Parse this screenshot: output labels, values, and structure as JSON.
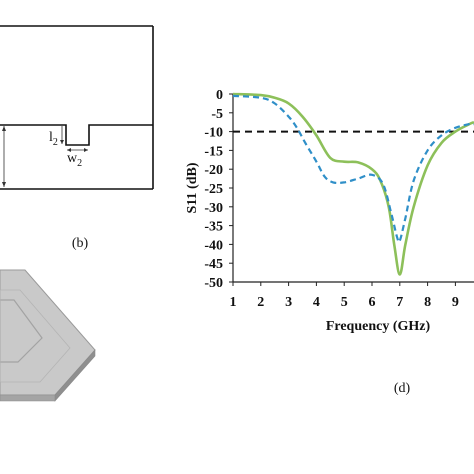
{
  "panel_b": {
    "caption": "(b)",
    "dim_l": "l",
    "dim_l_sub": "2",
    "dim_w": "w",
    "dim_w_sub": "2"
  },
  "panel_d": {
    "caption": "(d)"
  },
  "chart_data": {
    "type": "line",
    "title": "",
    "xlabel": "Frequency (GHz)",
    "ylabel": "S11 (dB)",
    "xlim": [
      1,
      10
    ],
    "ylim": [
      -50,
      0
    ],
    "xticks": [
      1,
      2,
      3,
      4,
      5,
      6,
      7,
      8,
      9
    ],
    "yticks": [
      0,
      -5,
      -10,
      -15,
      -20,
      -25,
      -30,
      -35,
      -40,
      -45,
      -50
    ],
    "grid": false,
    "legend": "none",
    "reference_line": {
      "y": -10,
      "style": "dashed",
      "color": "#111111"
    },
    "series": [
      {
        "style": "solid",
        "color": "#8dc05a",
        "x": [
          1.0,
          2.0,
          2.5,
          3.0,
          3.5,
          4.0,
          4.5,
          5.0,
          5.5,
          6.0,
          6.3,
          6.6,
          6.8,
          7.0,
          7.2,
          7.5,
          8.0,
          8.5,
          9.0,
          9.5,
          10.0
        ],
        "y": [
          0,
          -0.3,
          -1.0,
          -2.5,
          -6,
          -11,
          -17,
          -18,
          -18.2,
          -20,
          -23,
          -30,
          -40,
          -48,
          -40,
          -30,
          -19,
          -13,
          -10,
          -8,
          -7.5
        ]
      },
      {
        "style": "dashed",
        "color": "#2f8fc8",
        "x": [
          1.0,
          2.0,
          2.5,
          3.0,
          3.3,
          3.6,
          4.0,
          4.3,
          4.6,
          5.0,
          5.5,
          6.0,
          6.4,
          6.7,
          6.9,
          7.0,
          7.2,
          7.5,
          8.0,
          8.5,
          9.0,
          9.5,
          10.0
        ],
        "y": [
          -0.5,
          -1.0,
          -2.5,
          -6,
          -9,
          -13,
          -18,
          -22,
          -23.5,
          -23.5,
          -22.5,
          -21.5,
          -24,
          -32,
          -38,
          -39,
          -33,
          -23,
          -15,
          -11,
          -9,
          -8,
          -8
        ]
      }
    ]
  }
}
